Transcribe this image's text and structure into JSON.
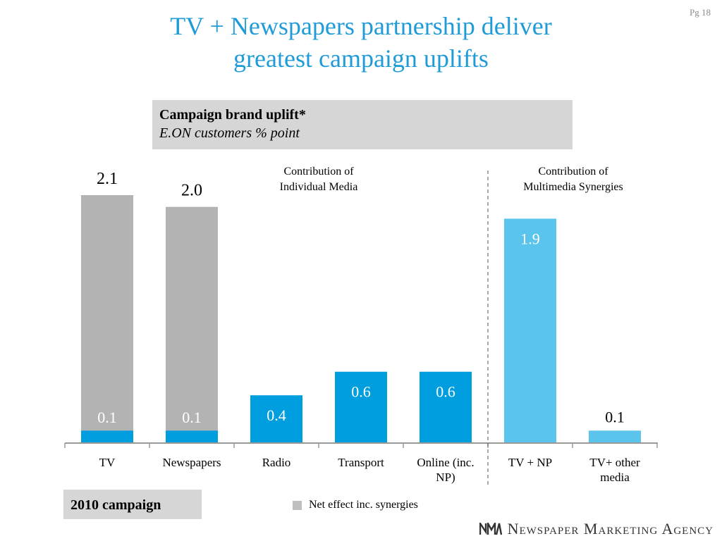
{
  "page": {
    "number": "Pg 18"
  },
  "header": {
    "title_line1": "TV + Newspapers partnership deliver",
    "title_line2": "greatest campaign uplifts"
  },
  "subtitle": {
    "line1": "Campaign brand uplift*",
    "line2": "E.ON customers % point"
  },
  "section_labels": {
    "individual": [
      "Contribution of",
      "Individual Media"
    ],
    "multimedia": [
      "Contribution of",
      "Multimedia Synergies"
    ]
  },
  "chart_data": {
    "type": "bar",
    "categories": [
      [
        "TV"
      ],
      [
        "Newspapers"
      ],
      [
        "Radio"
      ],
      [
        "Transport"
      ],
      [
        "Online (inc.",
        "NP)"
      ],
      [
        "TV + NP"
      ],
      [
        "TV+ other",
        "media"
      ]
    ],
    "bars": [
      {
        "total": 2.1,
        "total_label": "2.1",
        "segment": 0.1,
        "segment_label": "0.1",
        "segment_color": "#009edf",
        "gray": true
      },
      {
        "total": 2.0,
        "total_label": "2.0",
        "segment": 0.1,
        "segment_label": "0.1",
        "segment_color": "#009edf",
        "gray": true
      },
      {
        "total": 0.4,
        "segment": 0.4,
        "segment_label": "0.4",
        "segment_color": "#009edf",
        "gray": false
      },
      {
        "total": 0.6,
        "segment": 0.6,
        "segment_label": "0.6",
        "segment_color": "#009edf",
        "gray": false
      },
      {
        "total": 0.6,
        "segment": 0.6,
        "segment_label": "0.6",
        "segment_color": "#009edf",
        "gray": false
      },
      {
        "total": 1.9,
        "segment": 1.9,
        "segment_label": "1.9",
        "segment_color": "#5bc4ed",
        "gray": false
      },
      {
        "total": 0.1,
        "segment": 0.1,
        "segment_label": "0.1",
        "segment_color": "#5bc4ed",
        "gray": false,
        "label_above": true
      }
    ],
    "ylim": [
      0,
      2.1
    ],
    "gray_color": "#b3b3b3",
    "legend": [
      {
        "label": "Net effect inc. synergies",
        "color": "#bfbfbf"
      }
    ]
  },
  "campaign": {
    "label": "2010 campaign"
  },
  "footer": {
    "logo_text": "Newspaper Marketing Agency",
    "logo_mark": "NMA"
  }
}
